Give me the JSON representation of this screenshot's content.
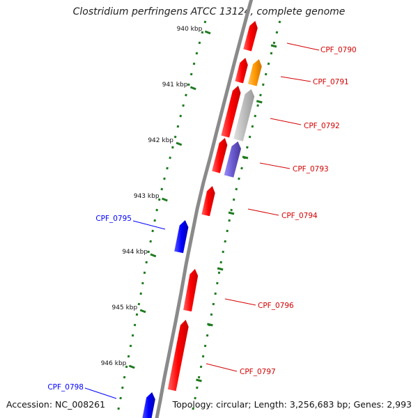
{
  "title": "Clostridium perfringens ATCC 13124, complete genome",
  "footer": {
    "accession": "Accession: NC_008261",
    "summary": "Topology: circular; Length: 3,256,683 bp; Genes: 2,993"
  },
  "colors": {
    "forward_cds": "#ff0000",
    "reverse_cds": "#0000ff",
    "cog_orange": "#ff9900",
    "cog_gray": "#b8b8b8",
    "cog_purple": "#6a5acd",
    "tick_green": "#1f7a1f",
    "backbone": "#8a8a8a"
  },
  "ticks": [
    {
      "label": "940 kbp"
    },
    {
      "label": "941 kbp"
    },
    {
      "label": "942 kbp"
    },
    {
      "label": "943 kbp"
    },
    {
      "label": "944 kbp"
    },
    {
      "label": "945 kbp"
    },
    {
      "label": "946 kbp"
    }
  ],
  "genes": [
    {
      "label": "CPF_0790",
      "strand": "forward"
    },
    {
      "label": "CPF_0791",
      "strand": "forward"
    },
    {
      "label": "CPF_0792",
      "strand": "forward"
    },
    {
      "label": "CPF_0793",
      "strand": "forward"
    },
    {
      "label": "CPF_0794",
      "strand": "forward"
    },
    {
      "label": "CPF_0795",
      "strand": "reverse"
    },
    {
      "label": "CPF_0796",
      "strand": "forward"
    },
    {
      "label": "CPF_0797",
      "strand": "forward"
    },
    {
      "label": "CPF_0798",
      "strand": "reverse"
    }
  ]
}
